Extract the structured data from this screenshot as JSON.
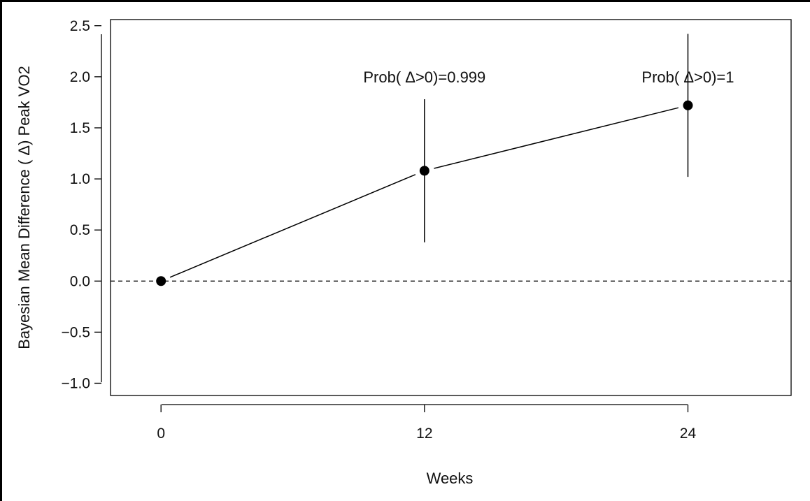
{
  "chart_data": {
    "type": "line",
    "xlabel": "Weeks",
    "ylabel": "Bayesian Mean Difference ( Δ) Peak VO2",
    "x_ticks": [
      "0",
      "12",
      "24"
    ],
    "y_ticks": [
      "2.5",
      "2.0",
      "1.5",
      "1.0",
      "0.5",
      "0.0",
      "−0.5",
      "−1.0"
    ],
    "xlim": [
      -2.3,
      28.7
    ],
    "ylim": [
      -1.12,
      2.56
    ],
    "reference_line": {
      "y": 0,
      "style": "dashed"
    },
    "points": [
      {
        "x": 0,
        "y": 0.0,
        "lower": null,
        "upper": null,
        "label": ""
      },
      {
        "x": 12,
        "y": 1.08,
        "lower": 0.38,
        "upper": 1.78,
        "label": "Prob( Δ>0)=0.999"
      },
      {
        "x": 24,
        "y": 1.72,
        "lower": 1.02,
        "upper": 2.42,
        "label": "Prob( Δ>0)=1"
      }
    ],
    "grid": false,
    "legend": "none"
  }
}
